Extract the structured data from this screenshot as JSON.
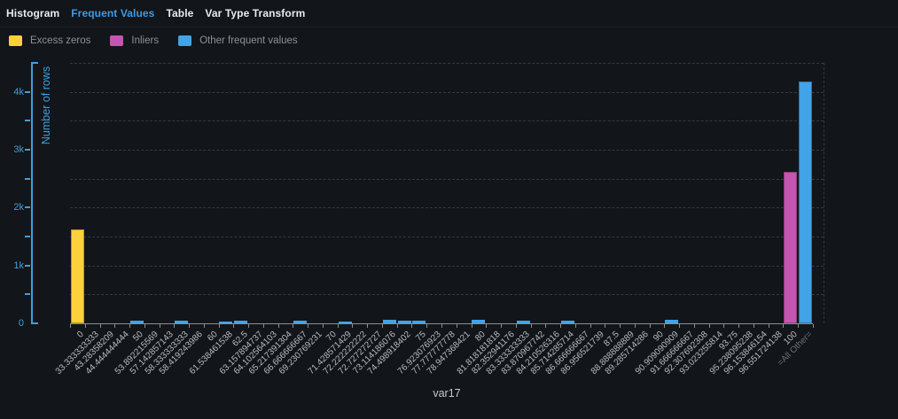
{
  "tabs": {
    "items": [
      {
        "label": "Histogram",
        "active": false
      },
      {
        "label": "Frequent Values",
        "active": true
      },
      {
        "label": "Table",
        "active": false
      },
      {
        "label": "Var Type Transform",
        "active": false
      }
    ]
  },
  "legend": {
    "items": [
      {
        "label": "Excess zeros",
        "color": "#fdd13b"
      },
      {
        "label": "Inliers",
        "color": "#c356ae"
      },
      {
        "label": "Other frequent values",
        "color": "#41a3e8"
      }
    ]
  },
  "colors": {
    "axis_blue": "#3f9fe0",
    "grid": "#343a40",
    "x_axis": "#898f94",
    "x_label": "#b7bcc0",
    "muted_label": "#6b7175",
    "background": "#121519"
  },
  "chart_data": {
    "type": "bar",
    "title": "",
    "xlabel": "var17",
    "ylabel": "Number of rows",
    "ylim": [
      0,
      4500
    ],
    "grid_step": 500,
    "ytick_values": [
      0,
      1000,
      2000,
      3000,
      4000
    ],
    "ytick_labels": [
      "0",
      "1k",
      "2k",
      "3k",
      "4k"
    ],
    "grid_dashed": true,
    "legend_position": "top-left",
    "muted_categories": [
      "=All Other="
    ],
    "categories": [
      "0",
      "33.333333333",
      "43.28358209",
      "44.444444444",
      "50",
      "53.892215569",
      "57.142857143",
      "58.333333333",
      "58.419243986",
      "60",
      "61.538461538",
      "62.5",
      "63.157894737",
      "64.102564103",
      "65.217391304",
      "66.666666667",
      "69.230769231",
      "70",
      "71.428571429",
      "72.222222222",
      "72.727272727",
      "73.114186076",
      "74.498918402",
      "75",
      "76.923076923",
      "77.777777778",
      "78.947368421",
      "80",
      "81.818181818",
      "82.352941176",
      "83.333333333",
      "83.870967742",
      "84.210526316",
      "85.714285714",
      "86.666666667",
      "86.956521739",
      "87.5",
      "88.888888889",
      "89.285714286",
      "90",
      "90.909090909",
      "91.666666667",
      "92.307692308",
      "93.023255814",
      "93.75",
      "95.238095238",
      "96.153846154",
      "96.551724138",
      "100",
      "=All Other="
    ],
    "series": [
      {
        "name": "Excess zeros",
        "color": "#fdd13b",
        "points": {
          "0": 1630
        }
      },
      {
        "name": "Inliers",
        "color": "#c356ae",
        "points": {
          "100": 2610
        }
      },
      {
        "name": "Other frequent values",
        "color": "#41a3e8",
        "points": {
          "50": 45,
          "58.333333333": 45,
          "61.538461538": 35,
          "62.5": 40,
          "66.666666667": 45,
          "71.428571429": 35,
          "73.114186076": 55,
          "74.498918402": 45,
          "75": 45,
          "80": 65,
          "83.333333333": 45,
          "85.714285714": 50,
          "90.909090909": 60,
          "=All Other=": 4180
        }
      }
    ]
  }
}
